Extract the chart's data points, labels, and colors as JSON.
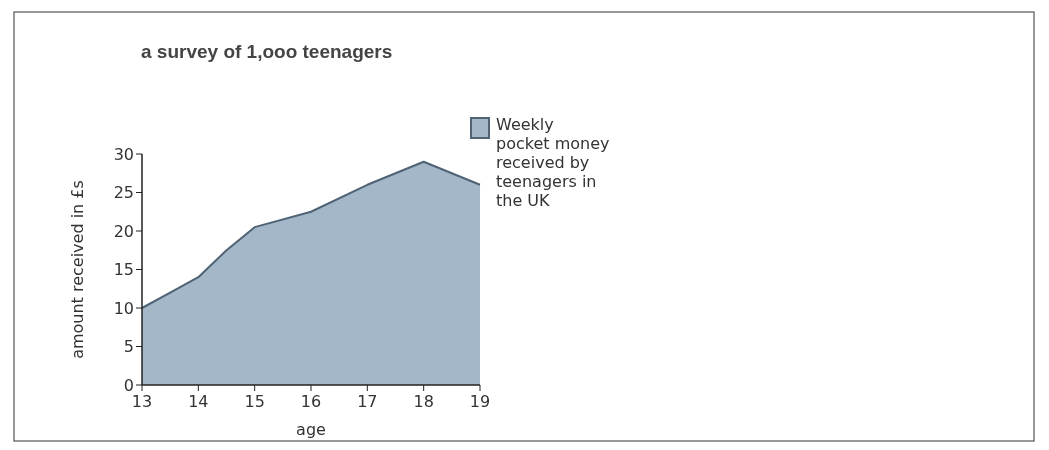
{
  "chart_data": {
    "type": "area",
    "title": "a survey of 1,ooo teenagers",
    "xlabel": "age",
    "ylabel": "amount received in £s",
    "x": [
      13,
      13.5,
      14,
      14.5,
      15,
      16,
      17,
      18,
      19
    ],
    "series": [
      {
        "name": "Weekly pocket money received by teenagers in the UK",
        "color": "#a3b7c9",
        "values": [
          10,
          12,
          14,
          17.5,
          20.5,
          22.5,
          26,
          29,
          26
        ]
      }
    ],
    "xlim": [
      13,
      19
    ],
    "xticks": [
      13,
      14,
      15,
      16,
      17,
      18,
      19
    ],
    "ylim": [
      0,
      30
    ],
    "yticks": [
      0,
      5,
      10,
      15,
      20,
      25,
      30
    ],
    "grid": false,
    "legend": "right"
  }
}
